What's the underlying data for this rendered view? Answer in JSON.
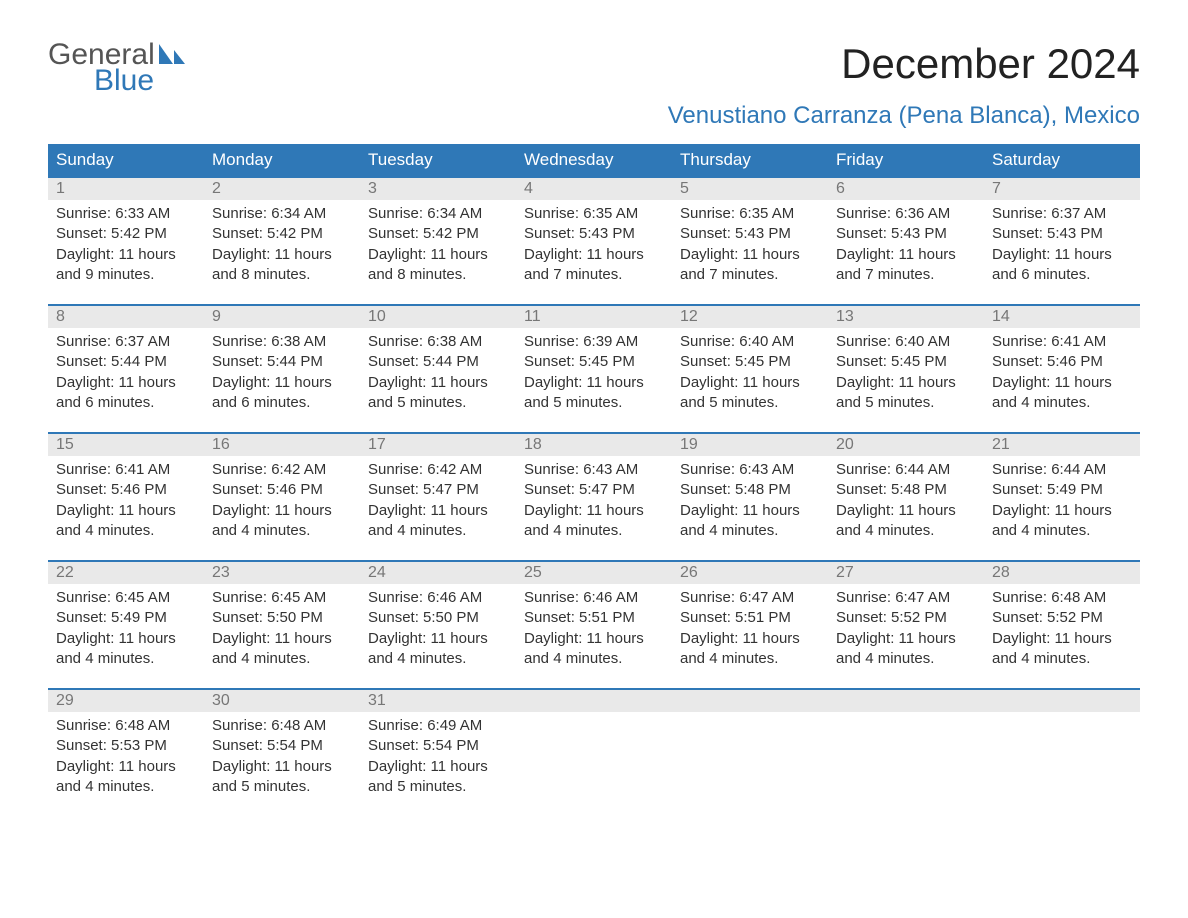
{
  "brand": {
    "line1": "General",
    "line2": "Blue"
  },
  "title": "December 2024",
  "subtitle": "Venustiano Carranza (Pena Blanca), Mexico",
  "colors": {
    "header_bg": "#2f78b7",
    "header_text": "#ffffff",
    "row_divider": "#2f78b7",
    "daynum_bg": "#e9e9e9",
    "daynum_text": "#777777",
    "body_text": "#333333",
    "title_text": "#222222",
    "subtitle_text": "#2f78b7",
    "logo_gray": "#555555",
    "logo_blue": "#2f78b7",
    "background": "#ffffff"
  },
  "fontsizes": {
    "title": 42,
    "subtitle": 24,
    "weekday": 17,
    "daynum": 16,
    "body": 15,
    "logo": 30
  },
  "weekdays": [
    "Sunday",
    "Monday",
    "Tuesday",
    "Wednesday",
    "Thursday",
    "Friday",
    "Saturday"
  ],
  "labels": {
    "sunrise": "Sunrise: ",
    "sunset": "Sunset: ",
    "daylight": "Daylight: "
  },
  "days": [
    {
      "n": "1",
      "sunrise": "6:33 AM",
      "sunset": "5:42 PM",
      "daylight": "11 hours and 9 minutes."
    },
    {
      "n": "2",
      "sunrise": "6:34 AM",
      "sunset": "5:42 PM",
      "daylight": "11 hours and 8 minutes."
    },
    {
      "n": "3",
      "sunrise": "6:34 AM",
      "sunset": "5:42 PM",
      "daylight": "11 hours and 8 minutes."
    },
    {
      "n": "4",
      "sunrise": "6:35 AM",
      "sunset": "5:43 PM",
      "daylight": "11 hours and 7 minutes."
    },
    {
      "n": "5",
      "sunrise": "6:35 AM",
      "sunset": "5:43 PM",
      "daylight": "11 hours and 7 minutes."
    },
    {
      "n": "6",
      "sunrise": "6:36 AM",
      "sunset": "5:43 PM",
      "daylight": "11 hours and 7 minutes."
    },
    {
      "n": "7",
      "sunrise": "6:37 AM",
      "sunset": "5:43 PM",
      "daylight": "11 hours and 6 minutes."
    },
    {
      "n": "8",
      "sunrise": "6:37 AM",
      "sunset": "5:44 PM",
      "daylight": "11 hours and 6 minutes."
    },
    {
      "n": "9",
      "sunrise": "6:38 AM",
      "sunset": "5:44 PM",
      "daylight": "11 hours and 6 minutes."
    },
    {
      "n": "10",
      "sunrise": "6:38 AM",
      "sunset": "5:44 PM",
      "daylight": "11 hours and 5 minutes."
    },
    {
      "n": "11",
      "sunrise": "6:39 AM",
      "sunset": "5:45 PM",
      "daylight": "11 hours and 5 minutes."
    },
    {
      "n": "12",
      "sunrise": "6:40 AM",
      "sunset": "5:45 PM",
      "daylight": "11 hours and 5 minutes."
    },
    {
      "n": "13",
      "sunrise": "6:40 AM",
      "sunset": "5:45 PM",
      "daylight": "11 hours and 5 minutes."
    },
    {
      "n": "14",
      "sunrise": "6:41 AM",
      "sunset": "5:46 PM",
      "daylight": "11 hours and 4 minutes."
    },
    {
      "n": "15",
      "sunrise": "6:41 AM",
      "sunset": "5:46 PM",
      "daylight": "11 hours and 4 minutes."
    },
    {
      "n": "16",
      "sunrise": "6:42 AM",
      "sunset": "5:46 PM",
      "daylight": "11 hours and 4 minutes."
    },
    {
      "n": "17",
      "sunrise": "6:42 AM",
      "sunset": "5:47 PM",
      "daylight": "11 hours and 4 minutes."
    },
    {
      "n": "18",
      "sunrise": "6:43 AM",
      "sunset": "5:47 PM",
      "daylight": "11 hours and 4 minutes."
    },
    {
      "n": "19",
      "sunrise": "6:43 AM",
      "sunset": "5:48 PM",
      "daylight": "11 hours and 4 minutes."
    },
    {
      "n": "20",
      "sunrise": "6:44 AM",
      "sunset": "5:48 PM",
      "daylight": "11 hours and 4 minutes."
    },
    {
      "n": "21",
      "sunrise": "6:44 AM",
      "sunset": "5:49 PM",
      "daylight": "11 hours and 4 minutes."
    },
    {
      "n": "22",
      "sunrise": "6:45 AM",
      "sunset": "5:49 PM",
      "daylight": "11 hours and 4 minutes."
    },
    {
      "n": "23",
      "sunrise": "6:45 AM",
      "sunset": "5:50 PM",
      "daylight": "11 hours and 4 minutes."
    },
    {
      "n": "24",
      "sunrise": "6:46 AM",
      "sunset": "5:50 PM",
      "daylight": "11 hours and 4 minutes."
    },
    {
      "n": "25",
      "sunrise": "6:46 AM",
      "sunset": "5:51 PM",
      "daylight": "11 hours and 4 minutes."
    },
    {
      "n": "26",
      "sunrise": "6:47 AM",
      "sunset": "5:51 PM",
      "daylight": "11 hours and 4 minutes."
    },
    {
      "n": "27",
      "sunrise": "6:47 AM",
      "sunset": "5:52 PM",
      "daylight": "11 hours and 4 minutes."
    },
    {
      "n": "28",
      "sunrise": "6:48 AM",
      "sunset": "5:52 PM",
      "daylight": "11 hours and 4 minutes."
    },
    {
      "n": "29",
      "sunrise": "6:48 AM",
      "sunset": "5:53 PM",
      "daylight": "11 hours and 4 minutes."
    },
    {
      "n": "30",
      "sunrise": "6:48 AM",
      "sunset": "5:54 PM",
      "daylight": "11 hours and 5 minutes."
    },
    {
      "n": "31",
      "sunrise": "6:49 AM",
      "sunset": "5:54 PM",
      "daylight": "11 hours and 5 minutes."
    }
  ],
  "grid": {
    "leading_blanks": 0,
    "trailing_blanks": 4,
    "weeks": 5
  }
}
